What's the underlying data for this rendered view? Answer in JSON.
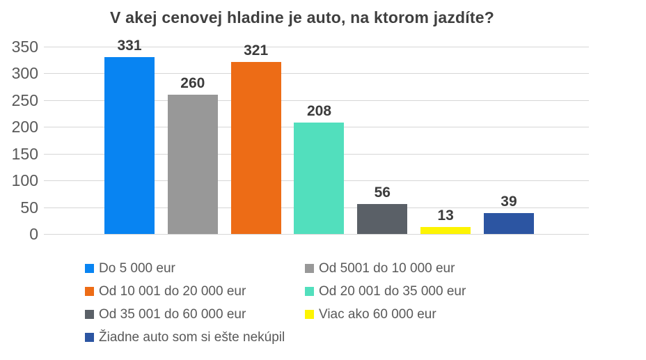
{
  "chart": {
    "title": "V akej cenovej hladine je auto, na ktorom jazdíte?"
  },
  "chart_data": {
    "type": "bar",
    "title": "V akej cenovej hladine je auto, na ktorom jazdíte?",
    "categories": [
      "Do 5 000 eur",
      "Od 5001 do 10 000 eur",
      "Od 10 001 do 20 000 eur",
      "Od 20 001 do 35 000 eur",
      "Od 35 001 do 60 000 eur",
      "Viac ako 60 000 eur",
      "Žiadne auto som si ešte nekúpil"
    ],
    "values": [
      331,
      260,
      321,
      208,
      56,
      13,
      39
    ],
    "bar_colors": [
      "#0884F2",
      "#989898",
      "#ED6C16",
      "#52DFBD",
      "#5A6067",
      "#FDF403",
      "#2C55A2"
    ],
    "yticks": [
      0,
      50,
      100,
      150,
      200,
      250,
      300,
      350
    ],
    "ylim": [
      0,
      350
    ],
    "xlabel": "",
    "ylabel": "",
    "grid": true,
    "legend_position": "bottom",
    "gridline_color": "#D6D6D6",
    "title_color": "#3F3F3F",
    "tick_color": "#595959",
    "label_color": "#3B3B3B",
    "legend_text_color": "#595959"
  }
}
